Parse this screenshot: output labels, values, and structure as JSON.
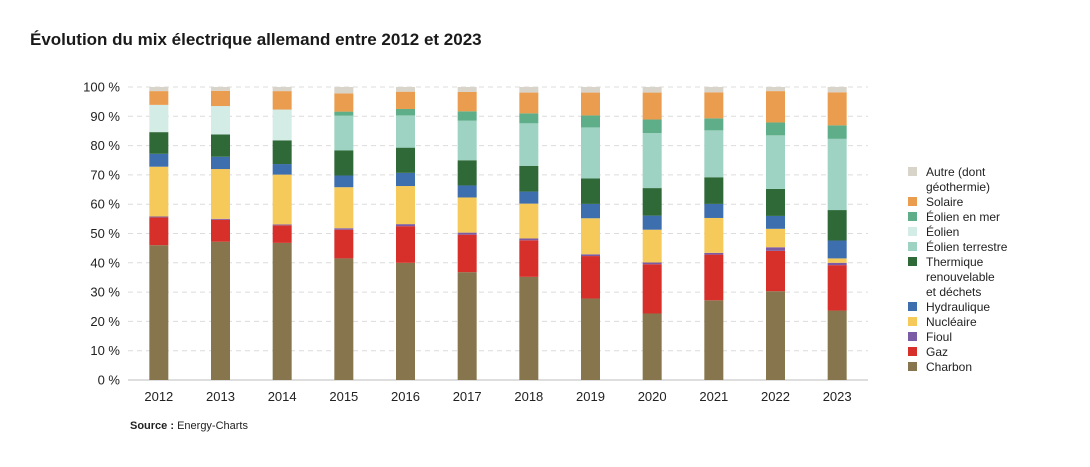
{
  "title": "Évolution du mix électrique allemand entre 2012 et 2023",
  "source": {
    "label": "Source :",
    "text": "Energy-Charts"
  },
  "chart_data": {
    "type": "bar",
    "stacked": true,
    "categories": [
      "2012",
      "2013",
      "2014",
      "2015",
      "2016",
      "2017",
      "2018",
      "2019",
      "2020",
      "2021",
      "2022",
      "2023"
    ],
    "y_ticks": [
      "0 %",
      "10 %",
      "20 %",
      "30 %",
      "40 %",
      "50 %",
      "60 %",
      "70 %",
      "80 %",
      "90 %",
      "100 %"
    ],
    "ylim": [
      0,
      100
    ],
    "grid": true,
    "legend_position": "right",
    "series": [
      {
        "name": "Charbon",
        "color": "#87764d",
        "values": [
          46,
          47.2,
          46.8,
          41.5,
          40,
          36.8,
          35.2,
          27.8,
          22.7,
          27.2,
          30.3,
          23.7
        ]
      },
      {
        "name": "Gaz",
        "color": "#d7302b",
        "values": [
          9.5,
          7.5,
          6,
          9.8,
          12.5,
          12.8,
          12.5,
          14.5,
          16.8,
          15.6,
          13.8,
          15.5
        ]
      },
      {
        "name": "Fioul",
        "color": "#7b5ba6",
        "values": [
          0.3,
          0.3,
          0.3,
          0.5,
          0.7,
          0.7,
          0.6,
          0.6,
          0.6,
          0.6,
          1.2,
          0.8
        ]
      },
      {
        "name": "Nucléaire",
        "color": "#f6c95b",
        "values": [
          17,
          17,
          17,
          14,
          13,
          12,
          11.9,
          12.3,
          11.2,
          11.9,
          6.3,
          1.5
        ]
      },
      {
        "name": "Hydraulique",
        "color": "#3d6eae",
        "values": [
          4.4,
          4.2,
          3.6,
          4,
          4.5,
          4.1,
          4.1,
          4.9,
          4.8,
          4.8,
          4.4,
          6.1
        ]
      },
      {
        "name": "Thermique renouvelable et déchets",
        "color": "#2f6937",
        "values": [
          7.4,
          7.6,
          8.1,
          8.6,
          8.6,
          8.6,
          8.8,
          8.7,
          9.4,
          9.1,
          9.2,
          10.4
        ]
      },
      {
        "name": "Éolien terrestre",
        "color": "#9ed2c2",
        "values": [
          0,
          0,
          0,
          11.8,
          11,
          13.5,
          14.5,
          17.4,
          18.8,
          16,
          18.3,
          24.3
        ]
      },
      {
        "name": "Éolien",
        "color": "#d3ece6",
        "values": [
          9.3,
          9.7,
          10.5,
          0,
          0,
          0,
          0,
          0,
          0,
          0,
          0,
          0
        ]
      },
      {
        "name": "Éolien en mer",
        "color": "#5fae8a",
        "values": [
          0,
          0,
          0,
          1.4,
          2.2,
          3.2,
          3.4,
          4.1,
          4.6,
          4.1,
          4.4,
          4.6
        ]
      },
      {
        "name": "Solaire",
        "color": "#eb9d4f",
        "values": [
          4.7,
          5.2,
          6.3,
          6.2,
          5.9,
          6.6,
          7.1,
          7.8,
          9.2,
          8.9,
          10.7,
          11.3
        ]
      },
      {
        "name": "Autre (dont géothermie)",
        "color": "#d9d4c9",
        "values": [
          1.4,
          1.3,
          1.4,
          2.2,
          1.6,
          1.7,
          1.9,
          1.9,
          1.9,
          1.8,
          1.4,
          1.8
        ]
      }
    ],
    "legend_order": [
      "Autre (dont géothermie)",
      "Solaire",
      "Éolien en mer",
      "Éolien",
      "Éolien terrestre",
      "Thermique renouvelable et déchets",
      "Hydraulique",
      "Nucléaire",
      "Fioul",
      "Gaz",
      "Charbon"
    ]
  }
}
